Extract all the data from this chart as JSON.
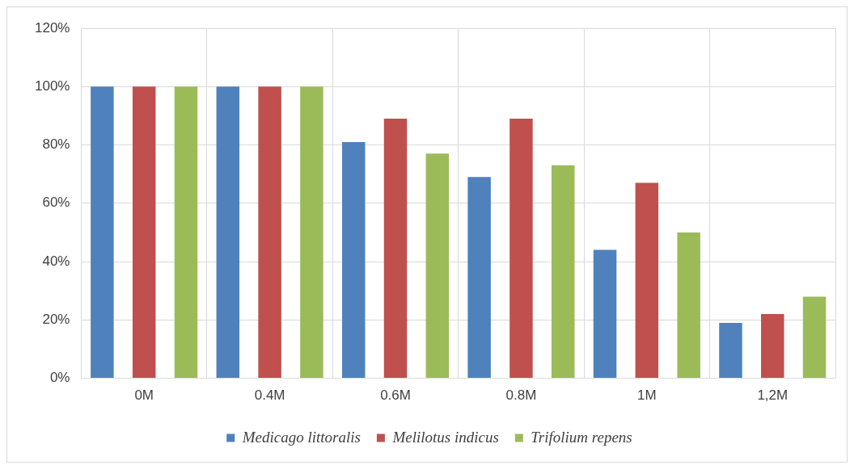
{
  "chart_data": {
    "type": "bar",
    "categories": [
      "0M",
      "0.4M",
      "0.6M",
      "0.8M",
      "1M",
      "1,2M"
    ],
    "series": [
      {
        "name": "Medicago littoralis",
        "color": "#4f81bd",
        "values": [
          100,
          100,
          81,
          69,
          44,
          19
        ]
      },
      {
        "name": "Melilotus indicus",
        "color": "#c0504d",
        "values": [
          100,
          100,
          89,
          89,
          67,
          22
        ]
      },
      {
        "name": "Trifolium repens",
        "color": "#9bbb59",
        "values": [
          100,
          100,
          77,
          73,
          50,
          28
        ]
      }
    ],
    "ylim": [
      0,
      120
    ],
    "yticks": [
      {
        "value": 0,
        "label": "0%"
      },
      {
        "value": 20,
        "label": "20%"
      },
      {
        "value": 40,
        "label": "40%"
      },
      {
        "value": 60,
        "label": "60%"
      },
      {
        "value": 80,
        "label": "80%"
      },
      {
        "value": 100,
        "label": "100%"
      },
      {
        "value": 120,
        "label": "120%"
      }
    ],
    "grid": true,
    "legend": "bottom"
  }
}
